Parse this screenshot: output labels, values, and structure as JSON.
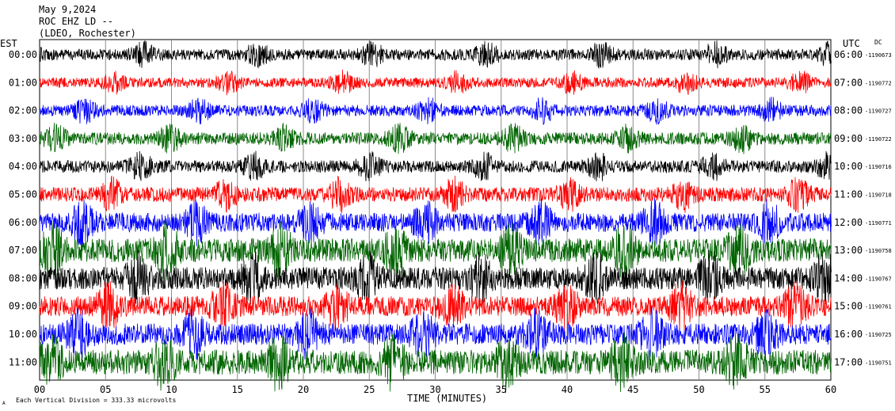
{
  "header": {
    "date": "May 9,2024",
    "station": "ROC EHZ LD --",
    "network": "(LDEO, Rochester)"
  },
  "left_axis_label": "EST",
  "right_axis_label": "UTC",
  "dc_label": "DC",
  "footer": {
    "scale_text": "Each Vertical Division =  333.33 microvolts",
    "scale_mark": "A"
  },
  "chart_data": {
    "type": "line",
    "title": "May 9,2024",
    "xlabel": "TIME (MINUTES)",
    "ylabel": "",
    "xlim": [
      0,
      60
    ],
    "x_ticks": [
      "00",
      "05",
      "10",
      "15",
      "20",
      "25",
      "30",
      "35",
      "40",
      "45",
      "50",
      "55",
      "60"
    ],
    "grid": true,
    "colors": [
      "#000000",
      "#ff0000",
      "#0000ff",
      "#006400"
    ],
    "rows": [
      {
        "est": "00:00",
        "utc": "06:00",
        "dc": "-1190673",
        "amp": 0.2
      },
      {
        "est": "01:00",
        "utc": "07:00",
        "dc": "-1190772",
        "amp": 0.18
      },
      {
        "est": "02:00",
        "utc": "08:00",
        "dc": "-1190727",
        "amp": 0.2
      },
      {
        "est": "03:00",
        "utc": "09:00",
        "dc": "-1190722",
        "amp": 0.22
      },
      {
        "est": "04:00",
        "utc": "10:00",
        "dc": "-1190716",
        "amp": 0.22
      },
      {
        "est": "05:00",
        "utc": "11:00",
        "dc": "-1190718",
        "amp": 0.26
      },
      {
        "est": "06:00",
        "utc": "12:00",
        "dc": "-1190771",
        "amp": 0.34
      },
      {
        "est": "07:00",
        "utc": "13:00",
        "dc": "-1190758",
        "amp": 0.42
      },
      {
        "est": "08:00",
        "utc": "14:00",
        "dc": "-1190767",
        "amp": 0.4
      },
      {
        "est": "09:00",
        "utc": "15:00",
        "dc": "-1190761",
        "amp": 0.36
      },
      {
        "est": "10:00",
        "utc": "16:00",
        "dc": "-1190725",
        "amp": 0.38
      },
      {
        "est": "11:00",
        "utc": "17:00",
        "dc": "-1190751",
        "amp": 0.44
      }
    ]
  }
}
